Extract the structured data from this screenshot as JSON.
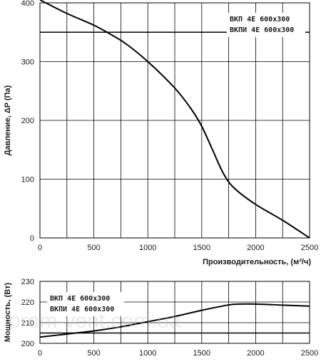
{
  "chart_data": [
    {
      "type": "line",
      "title": "",
      "xlabel": "Производительность, (м³/ч)",
      "ylabel": "Давление, ΔP (Па)",
      "xlim": [
        0,
        2500
      ],
      "ylim": [
        0,
        400
      ],
      "x_ticks": [
        0,
        500,
        1000,
        1500,
        2000,
        2500
      ],
      "y_ticks": [
        0,
        100,
        200,
        300,
        400
      ],
      "grid": true,
      "legend_position": "top-right",
      "legend": [
        "ВКП 4Е 600x300",
        "ВКПИ 4Е 600x300"
      ],
      "reference_line_y": 350,
      "series": [
        {
          "x": [
            0,
            250,
            500,
            650,
            800,
            1000,
            1250,
            1400,
            1500,
            1600,
            1700,
            1800,
            2000,
            2250,
            2500
          ],
          "y": [
            405,
            382,
            362,
            347,
            330,
            300,
            255,
            220,
            190,
            150,
            110,
            85,
            57,
            30,
            0
          ]
        }
      ]
    },
    {
      "type": "line",
      "title": "",
      "xlabel": "",
      "ylabel": "Мощность, (Вт)",
      "xlim": [
        0,
        2500
      ],
      "ylim": [
        200,
        230
      ],
      "x_ticks": [
        0,
        500,
        1000,
        1500,
        2000,
        2500
      ],
      "y_ticks": [
        200,
        210,
        220,
        230
      ],
      "grid": true,
      "legend_position": "top-left",
      "legend": [
        "ВКП 4Е 600x300",
        "ВКПИ 4Е 600x300"
      ],
      "reference_line_y": 205,
      "series": [
        {
          "x": [
            0,
            250,
            500,
            750,
            1000,
            1250,
            1500,
            1750,
            1850,
            2000,
            2250,
            2500
          ],
          "y": [
            203,
            204.5,
            206,
            208,
            210.5,
            213,
            216,
            218.6,
            219,
            219,
            218.5,
            218
          ]
        }
      ]
    }
  ],
  "watermark": "prom-vent.com.ua"
}
